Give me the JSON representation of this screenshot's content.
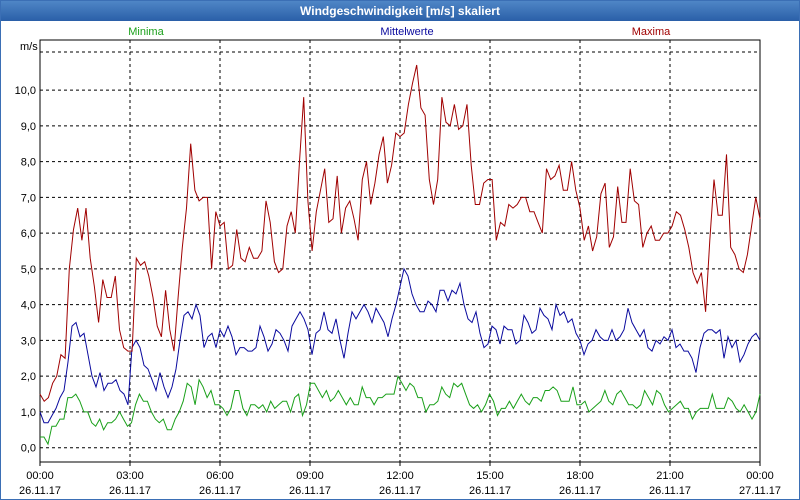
{
  "window": {
    "title": "Windgeschwindigkeit [m/s] skaliert"
  },
  "chart_data": {
    "type": "line",
    "ylabel": "m/s",
    "ylim": [
      -0.4,
      11.4
    ],
    "yticks": [
      "0,0",
      "1,0",
      "2,0",
      "3,0",
      "4,0",
      "5,0",
      "6,0",
      "7,0",
      "8,0",
      "9,0",
      "10,0"
    ],
    "ytick_values": [
      0,
      1,
      2,
      3,
      4,
      5,
      6,
      7,
      8,
      9,
      10
    ],
    "xticks": [
      {
        "time": "00:00",
        "date": "26.11.17"
      },
      {
        "time": "03:00",
        "date": "26.11.17"
      },
      {
        "time": "06:00",
        "date": "26.11.17"
      },
      {
        "time": "09:00",
        "date": "26.11.17"
      },
      {
        "time": "12:00",
        "date": "26.11.17"
      },
      {
        "time": "15:00",
        "date": "26.11.17"
      },
      {
        "time": "18:00",
        "date": "26.11.17"
      },
      {
        "time": "21:00",
        "date": "26.11.17"
      },
      {
        "time": "00:00",
        "date": "27.11.17"
      }
    ],
    "xlim_hours": [
      0,
      24
    ],
    "grid": true,
    "series": [
      {
        "name": "Minima",
        "color": "#1aa01a",
        "values": [
          0.3,
          0.3,
          0.1,
          0.6,
          0.6,
          0.8,
          0.8,
          1.4,
          1.4,
          1.5,
          1.3,
          1.0,
          1.0,
          0.7,
          0.6,
          0.8,
          0.5,
          0.7,
          0.7,
          0.8,
          1.0,
          0.8,
          0.6,
          0.7,
          1.2,
          1.5,
          1.3,
          1.3,
          1.0,
          0.8,
          0.7,
          0.8,
          0.5,
          0.5,
          0.8,
          1.0,
          1.3,
          1.8,
          1.7,
          1.2,
          1.9,
          1.7,
          1.4,
          1.6,
          1.2,
          1.2,
          1.1,
          0.9,
          1.1,
          1.6,
          1.6,
          1.1,
          0.9,
          1.2,
          1.2,
          1.1,
          1.2,
          1.0,
          1.3,
          1.1,
          1.2,
          1.3,
          1.3,
          1.0,
          1.4,
          1.5,
          0.9,
          1.2,
          1.8,
          1.8,
          1.6,
          1.4,
          1.6,
          1.3,
          1.4,
          1.6,
          1.4,
          1.2,
          1.4,
          1.2,
          1.2,
          1.7,
          1.4,
          1.4,
          1.2,
          1.4,
          1.4,
          1.5,
          1.5,
          1.5,
          2.0,
          1.8,
          1.6,
          1.8,
          1.7,
          1.4,
          1.4,
          1.0,
          1.2,
          1.2,
          1.3,
          1.7,
          1.5,
          1.4,
          1.8,
          1.7,
          1.8,
          1.5,
          1.2,
          1.1,
          1.2,
          1.0,
          1.2,
          1.5,
          1.3,
          0.9,
          1.1,
          1.1,
          1.3,
          1.1,
          1.3,
          1.5,
          1.3,
          1.2,
          1.4,
          1.4,
          1.3,
          1.6,
          1.6,
          1.7,
          1.6,
          1.3,
          1.3,
          1.3,
          1.7,
          1.2,
          1.2,
          1.3,
          1.0,
          1.1,
          1.2,
          1.3,
          1.6,
          1.3,
          1.2,
          1.5,
          1.6,
          1.4,
          1.2,
          1.2,
          1.1,
          1.2,
          1.6,
          1.4,
          1.2,
          1.6,
          1.5,
          1.2,
          1.0,
          1.1,
          1.2,
          1.3,
          1.1,
          1.1,
          0.8,
          1.0,
          1.1,
          1.1,
          1.1,
          1.5,
          1.1,
          1.1,
          1.1,
          1.4,
          1.3,
          1.1,
          1.0,
          1.2,
          1.0,
          0.8,
          1.0,
          1.5
        ]
      },
      {
        "name": "Mittelwerte",
        "color": "#0a0a9e",
        "values": [
          1.0,
          0.7,
          0.7,
          0.9,
          1.1,
          1.4,
          1.6,
          2.4,
          3.4,
          3.5,
          3.1,
          3.2,
          2.6,
          2.0,
          1.7,
          2.1,
          1.6,
          1.8,
          1.8,
          1.9,
          1.6,
          1.5,
          1.2,
          2.8,
          3.0,
          2.8,
          2.3,
          2.2,
          1.9,
          1.6,
          2.1,
          1.7,
          1.4,
          1.7,
          2.2,
          3.0,
          3.7,
          3.8,
          3.6,
          4.0,
          3.7,
          2.8,
          3.1,
          3.2,
          2.8,
          3.3,
          3.1,
          3.4,
          3.1,
          2.6,
          2.8,
          2.8,
          2.7,
          2.7,
          2.8,
          3.4,
          3.1,
          2.7,
          2.9,
          3.3,
          3.2,
          3.0,
          2.7,
          3.4,
          3.6,
          3.8,
          3.6,
          3.3,
          2.6,
          3.2,
          3.3,
          3.8,
          3.3,
          3.2,
          3.6,
          3.0,
          2.5,
          3.2,
          3.8,
          3.6,
          3.8,
          4.0,
          3.8,
          3.5,
          3.9,
          3.7,
          3.5,
          3.1,
          3.6,
          4.0,
          4.5,
          5.0,
          4.8,
          4.3,
          4.0,
          3.8,
          3.8,
          4.1,
          4.0,
          3.8,
          4.4,
          4.4,
          4.1,
          4.4,
          4.3,
          4.6,
          4.0,
          3.6,
          3.5,
          3.8,
          3.2,
          2.8,
          2.9,
          3.4,
          3.3,
          2.9,
          3.4,
          3.3,
          3.3,
          2.9,
          3.0,
          3.7,
          3.5,
          3.2,
          3.3,
          3.9,
          3.7,
          3.6,
          3.3,
          4.0,
          3.7,
          3.8,
          3.5,
          3.6,
          3.2,
          3.0,
          2.6,
          2.9,
          3.0,
          3.3,
          3.1,
          3.0,
          3.0,
          3.3,
          3.0,
          3.1,
          3.3,
          3.9,
          3.5,
          3.3,
          3.1,
          3.3,
          2.8,
          2.7,
          3.0,
          2.9,
          3.1,
          3.0,
          3.3,
          2.8,
          2.9,
          2.7,
          2.7,
          2.5,
          2.1,
          2.8,
          3.2,
          3.3,
          3.3,
          3.2,
          3.3,
          2.5,
          3.1,
          2.8,
          3.0,
          2.4,
          2.6,
          2.9,
          3.1,
          3.2,
          3.0
        ]
      },
      {
        "name": "Maxima",
        "color": "#a00000",
        "values": [
          1.5,
          1.3,
          1.4,
          1.8,
          2.0,
          2.6,
          2.5,
          5.0,
          6.1,
          6.7,
          5.8,
          6.7,
          5.3,
          4.5,
          3.5,
          4.7,
          4.2,
          4.2,
          4.8,
          3.3,
          2.8,
          2.7,
          2.7,
          5.3,
          5.1,
          5.2,
          4.8,
          4.2,
          3.4,
          3.1,
          4.4,
          3.3,
          2.7,
          4.2,
          5.6,
          6.7,
          8.5,
          7.2,
          6.9,
          7.0,
          7.0,
          5.0,
          6.6,
          6.2,
          6.3,
          5.0,
          5.1,
          6.1,
          5.3,
          5.2,
          5.6,
          5.3,
          5.3,
          5.5,
          6.9,
          6.3,
          5.2,
          4.9,
          5.0,
          6.2,
          6.6,
          6.0,
          8.0,
          9.8,
          6.9,
          5.5,
          6.6,
          7.2,
          7.8,
          6.3,
          6.4,
          7.6,
          6.0,
          6.7,
          6.9,
          6.4,
          5.8,
          7.5,
          8.0,
          6.8,
          7.4,
          8.2,
          8.7,
          7.4,
          7.9,
          8.8,
          8.7,
          8.8,
          9.6,
          10.2,
          10.7,
          9.5,
          9.3,
          7.5,
          6.8,
          7.5,
          9.8,
          9.1,
          9.0,
          9.6,
          8.9,
          9.0,
          9.6,
          7.9,
          6.8,
          6.8,
          7.4,
          7.5,
          7.5,
          5.8,
          6.3,
          6.2,
          6.8,
          6.7,
          6.8,
          7.0,
          7.0,
          6.6,
          6.6,
          6.3,
          6.0,
          7.8,
          7.5,
          7.6,
          7.9,
          7.2,
          7.2,
          8.0,
          7.2,
          6.7,
          5.8,
          6.2,
          5.5,
          5.9,
          7.1,
          7.4,
          5.6,
          5.9,
          7.3,
          6.3,
          6.3,
          7.8,
          6.9,
          6.8,
          5.6,
          6.0,
          6.2,
          5.8,
          5.8,
          6.0,
          6.0,
          6.2,
          6.6,
          6.5,
          6.1,
          5.6,
          4.9,
          4.6,
          4.9,
          3.8,
          5.8,
          7.5,
          6.5,
          6.5,
          8.2,
          5.6,
          5.4,
          5.0,
          4.9,
          5.4,
          6.2,
          7.0,
          6.4
        ]
      }
    ]
  }
}
